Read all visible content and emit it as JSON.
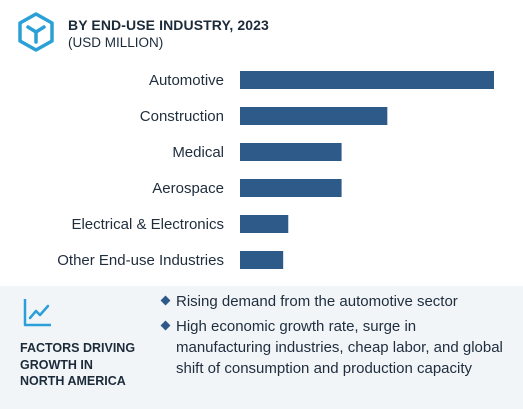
{
  "header": {
    "title": "BY END-USE INDUSTRY, 2023",
    "subtitle": "(USD MILLION)",
    "logo_icon": "hexagon-y-logo-icon"
  },
  "colors": {
    "bar": "#2e5a8a",
    "logo": "#2a9fd8",
    "footer_bg": "#f2f5f8"
  },
  "chart_data": {
    "type": "bar",
    "orientation": "horizontal",
    "categories": [
      "Automotive",
      "Construction",
      "Medical",
      "Aerospace",
      "Electrical & Electronics",
      "Other End-use Industries"
    ],
    "values": [
      100,
      58,
      40,
      40,
      19,
      17
    ],
    "xlim": [
      0,
      100
    ],
    "grid": false,
    "axis_values_shown": false
  },
  "footer": {
    "icon": "trend-line-icon",
    "factors_title_lines": [
      "FACTORS DRIVING",
      "GROWTH IN",
      "NORTH AMERICA"
    ],
    "bullets": [
      "Rising demand from the automotive sector",
      "High economic growth rate, surge in manufacturing industries, cheap labor, and global shift of consumption and production capacity"
    ]
  }
}
